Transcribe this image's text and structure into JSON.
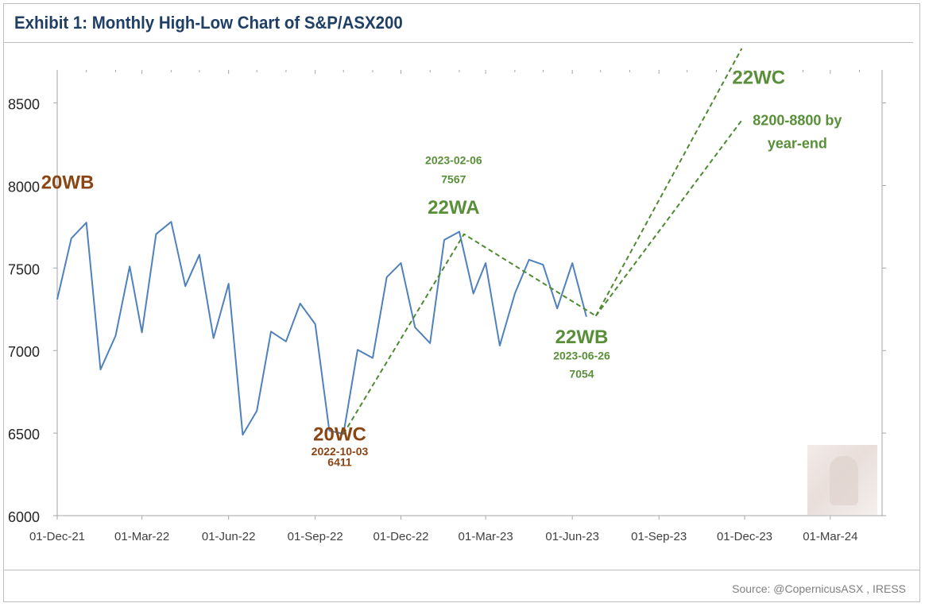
{
  "header": {
    "title": "Exhibit 1: Monthly High-Low Chart of S&P/ASX200"
  },
  "footer": {
    "source": "Source: @CopernicusASX , IRESS"
  },
  "colors": {
    "title": "#1f3f66",
    "series": "#4f81bd",
    "projection": "#4e8a32",
    "annotation_green": "#5a8f3a",
    "annotation_brown": "#8b4513",
    "axis": "#a6a6a6"
  },
  "chart_data": {
    "type": "line",
    "title": "Exhibit 1: Monthly High-Low Chart of S&P/ASX200",
    "xlabel": "",
    "ylabel": "",
    "xlim": [
      "2021-12-01",
      "2024-04-25"
    ],
    "ylim": [
      6000,
      8700
    ],
    "grid": false,
    "legend": "none",
    "x_ticks": [
      "01-Dec-21",
      "01-Mar-22",
      "01-Jun-22",
      "01-Sep-22",
      "01-Dec-22",
      "01-Mar-23",
      "01-Jun-23",
      "01-Sep-23",
      "01-Dec-23",
      "01-Mar-24"
    ],
    "y_ticks": [
      6000,
      6500,
      7000,
      7500,
      8000,
      8500
    ],
    "series": [
      {
        "style": "solid",
        "points": [
          [
            "2021-12-01",
            7310
          ],
          [
            "2021-12-16",
            7680
          ],
          [
            "2022-01-01",
            7775
          ],
          [
            "2022-01-16",
            6885
          ],
          [
            "2022-02-01",
            7090
          ],
          [
            "2022-02-16",
            7510
          ],
          [
            "2022-03-01",
            7110
          ],
          [
            "2022-03-16",
            7705
          ],
          [
            "2022-04-01",
            7780
          ],
          [
            "2022-04-16",
            7390
          ],
          [
            "2022-05-01",
            7580
          ],
          [
            "2022-05-16",
            7075
          ],
          [
            "2022-06-01",
            7405
          ],
          [
            "2022-06-16",
            6490
          ],
          [
            "2022-07-01",
            6635
          ],
          [
            "2022-07-16",
            7115
          ],
          [
            "2022-08-01",
            7055
          ],
          [
            "2022-08-16",
            7285
          ],
          [
            "2022-09-01",
            7160
          ],
          [
            "2022-09-16",
            6515
          ],
          [
            "2022-10-01",
            6495
          ],
          [
            "2022-10-16",
            7005
          ],
          [
            "2022-11-01",
            6955
          ],
          [
            "2022-11-16",
            7445
          ],
          [
            "2022-12-01",
            7530
          ],
          [
            "2022-12-16",
            7140
          ],
          [
            "2023-01-01",
            7045
          ],
          [
            "2023-01-16",
            7670
          ],
          [
            "2023-02-01",
            7720
          ],
          [
            "2023-02-16",
            7345
          ],
          [
            "2023-03-01",
            7530
          ],
          [
            "2023-03-16",
            7030
          ],
          [
            "2023-04-01",
            7345
          ],
          [
            "2023-04-16",
            7550
          ],
          [
            "2023-05-01",
            7520
          ],
          [
            "2023-05-16",
            7255
          ],
          [
            "2023-06-01",
            7530
          ],
          [
            "2023-06-16",
            7205
          ]
        ]
      },
      {
        "style": "dashed",
        "points": [
          [
            "2022-10-01",
            6495
          ],
          [
            "2023-02-06",
            7705
          ],
          [
            "2023-06-26",
            7210
          ]
        ]
      },
      {
        "style": "dashed",
        "points": [
          [
            "2023-06-26",
            7210
          ],
          [
            "2023-11-28",
            8830
          ]
        ]
      },
      {
        "style": "dashed",
        "points": [
          [
            "2023-06-26",
            7210
          ],
          [
            "2023-11-28",
            8395
          ]
        ]
      }
    ],
    "annotations": [
      {
        "text": "20WB",
        "x": "2021-12-12",
        "y": 7980,
        "color": "brown",
        "size": "large"
      },
      {
        "text": "20WC",
        "x": "2022-09-27",
        "y": 6455,
        "color": "brown",
        "size": "large"
      },
      {
        "text": "2022-10-03",
        "x": "2022-09-27",
        "y": 6365,
        "color": "brown",
        "size": "small"
      },
      {
        "text": "6411",
        "x": "2022-09-27",
        "y": 6300,
        "color": "brown",
        "size": "small"
      },
      {
        "text": "2023-02-06",
        "x": "2023-01-26",
        "y": 8130,
        "color": "green",
        "size": "small"
      },
      {
        "text": "7567",
        "x": "2023-01-26",
        "y": 8015,
        "color": "green",
        "size": "small"
      },
      {
        "text": "22WA",
        "x": "2023-01-26",
        "y": 7830,
        "color": "green",
        "size": "large"
      },
      {
        "text": "22WB",
        "x": "2023-06-11",
        "y": 7045,
        "color": "green",
        "size": "large"
      },
      {
        "text": "2023-06-26",
        "x": "2023-06-11",
        "y": 6945,
        "color": "green",
        "size": "small"
      },
      {
        "text": "7054",
        "x": "2023-06-11",
        "y": 6835,
        "color": "green",
        "size": "small"
      },
      {
        "text": "22WC",
        "x": "2023-12-16",
        "y": 8615,
        "color": "green",
        "size": "large"
      },
      {
        "text": "8200-8800 by",
        "x": "2024-01-26",
        "y": 8365,
        "color": "green",
        "size": "medium"
      },
      {
        "text": "year-end",
        "x": "2024-01-26",
        "y": 8225,
        "color": "green",
        "size": "medium"
      }
    ]
  }
}
